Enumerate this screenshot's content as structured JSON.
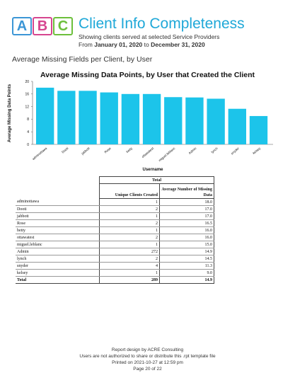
{
  "logo": {
    "letters": [
      "A",
      "B",
      "C"
    ],
    "colors": [
      "#3c96d6",
      "#d6458f",
      "#6cbf3b"
    ]
  },
  "header": {
    "title": "Client Info Completeness",
    "subtitle": "Showing clients served at selected Service Providers",
    "range_prefix": "From",
    "range_start": "January 01, 2020",
    "range_mid": "to",
    "range_end": "December 31, 2020"
  },
  "section_title": "Average Missing Fields per Client, by User",
  "chart_data": {
    "type": "bar",
    "title": "Average Missing Data Points, by User that Created the Client",
    "xlabel": "Username",
    "ylabel": "Average Missing Data Points",
    "ylim": [
      0,
      20
    ],
    "yticks": [
      0,
      4,
      8,
      12,
      16,
      20
    ],
    "grid": false,
    "bar_color": "#1cc4ea",
    "categories": [
      "adminottawa",
      "Dooti",
      "jabbott",
      "Rose",
      "betty",
      "ottawatest",
      "miguel.leblanc",
      "Admin",
      "lynch",
      "snyder",
      "kelsey"
    ],
    "values": [
      18.0,
      17.0,
      17.0,
      16.5,
      16.0,
      16.0,
      15.0,
      14.9,
      14.5,
      11.3,
      9.0
    ]
  },
  "table": {
    "group_title": "Total",
    "col1": "Unique Clients Created",
    "col2": "Average Number of Missing Data",
    "rows": [
      {
        "user": "adminottawa",
        "clients": "1",
        "avg": "18.0"
      },
      {
        "user": "Dooti",
        "clients": "2",
        "avg": "17.0"
      },
      {
        "user": "jabbott",
        "clients": "1",
        "avg": "17.0"
      },
      {
        "user": "Rose",
        "clients": "2",
        "avg": "16.5"
      },
      {
        "user": "betty",
        "clients": "1",
        "avg": "16.0"
      },
      {
        "user": "ottawatest",
        "clients": "2",
        "avg": "16.0"
      },
      {
        "user": "miguel.leblanc",
        "clients": "1",
        "avg": "15.0"
      },
      {
        "user": "Admin",
        "clients": "272",
        "avg": "14.9"
      },
      {
        "user": "lynch",
        "clients": "2",
        "avg": "14.5"
      },
      {
        "user": "snyder",
        "clients": "4",
        "avg": "11.3"
      },
      {
        "user": "kelsey",
        "clients": "1",
        "avg": "9.0"
      }
    ],
    "total": {
      "label": "Total",
      "clients": "289",
      "avg": "14.9"
    }
  },
  "footer": {
    "line1": "Report design by ACRE Consulting",
    "line2": "Users are not authorized to share or distribute this .rpt template file",
    "line3": "Printed on 2021-10-27 at 12:59 pm",
    "line4": "Page 20 of 22"
  }
}
